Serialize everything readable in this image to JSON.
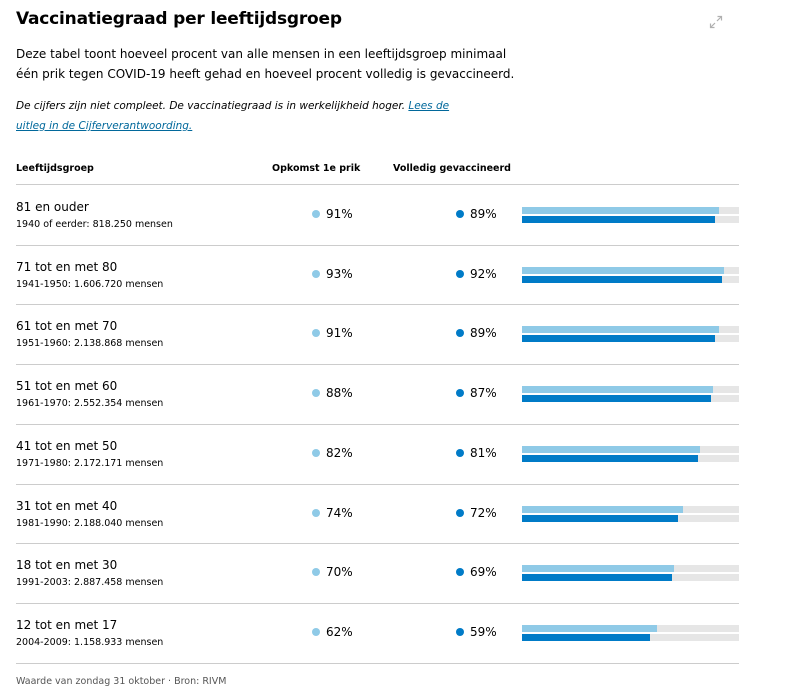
{
  "title": "Vaccinatiegraad per leeftijdsgroep",
  "description": "Deze tabel toont hoeveel procent van alle mensen in een leeftijdsgroep minimaal één prik tegen COVID-19 heeft gehad en hoeveel procent volledig is gevaccineerd.",
  "note": {
    "text": "De cijfers zijn niet compleet. De vaccinatiegraad is in werkelijkheid hoger. ",
    "link": "Lees de uitleg in de Cijferverantwoording."
  },
  "headers": {
    "group": "Leeftijdsgroep",
    "first": "Opkomst 1e prik",
    "full": "Volledig gevaccineerd"
  },
  "colors": {
    "first": "#8fcae7",
    "full": "#007bc7",
    "track": "#e6e6e6"
  },
  "icons": {
    "expand": "expand-icon"
  },
  "rows": [
    {
      "group": "81 en ouder",
      "sub": "1940 of eerder: 818.250 mensen",
      "first_label": "91%",
      "full_label": "89%",
      "first": 91,
      "full": 89
    },
    {
      "group": "71 tot en met 80",
      "sub": "1941-1950: 1.606.720 mensen",
      "first_label": "93%",
      "full_label": "92%",
      "first": 93,
      "full": 92
    },
    {
      "group": "61 tot en met 70",
      "sub": "1951-1960: 2.138.868 mensen",
      "first_label": "91%",
      "full_label": "89%",
      "first": 91,
      "full": 89
    },
    {
      "group": "51 tot en met 60",
      "sub": "1961-1970: 2.552.354 mensen",
      "first_label": "88%",
      "full_label": "87%",
      "first": 88,
      "full": 87
    },
    {
      "group": "41 tot en met 50",
      "sub": "1971-1980: 2.172.171 mensen",
      "first_label": "82%",
      "full_label": "81%",
      "first": 82,
      "full": 81
    },
    {
      "group": "31 tot en met 40",
      "sub": "1981-1990: 2.188.040 mensen",
      "first_label": "74%",
      "full_label": "72%",
      "first": 74,
      "full": 72
    },
    {
      "group": "18 tot en met 30",
      "sub": "1991-2003: 2.887.458 mensen",
      "first_label": "70%",
      "full_label": "69%",
      "first": 70,
      "full": 69
    },
    {
      "group": "12 tot en met 17",
      "sub": "2004-2009: 1.158.933 mensen",
      "first_label": "62%",
      "full_label": "59%",
      "first": 62,
      "full": 59
    }
  ],
  "footer": "Waarde van zondag 31 oktober · Bron: RIVM"
}
